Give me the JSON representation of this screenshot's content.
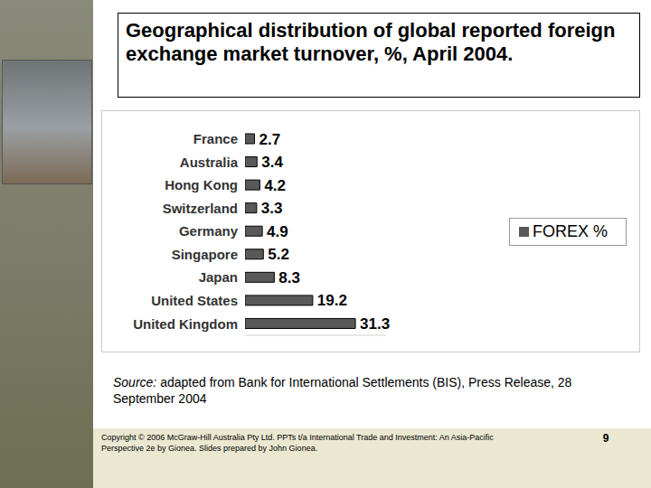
{
  "chart_data": {
    "type": "bar",
    "title": "Geographical distribution of global reported foreign exchange market turnover, %, April 2004.",
    "orientation": "horizontal",
    "categories": [
      "France",
      "Australia",
      "Hong Kong",
      "Switzerland",
      "Germany",
      "Singapore",
      "Japan",
      "United States",
      "United Kingdom"
    ],
    "series": [
      {
        "name": "FOREX %",
        "color": "#595959",
        "values": [
          2.7,
          3.4,
          4.2,
          3.3,
          4.9,
          5.2,
          8.3,
          19.2,
          31.3
        ]
      }
    ],
    "xlim": [
      0,
      40
    ],
    "data_labels": true,
    "tick_labels": "y",
    "legend": "right",
    "grid": false
  },
  "slide": {
    "source_label": "Source:",
    "source": "adapted from Bank for International Settlements (BIS), Press Release, 28 September 2004",
    "copyright": "Copyright © 2006 McGraw-Hill Australia Pty Ltd. PPTs t/a International Trade and Investment: An Asia-Pacific Perspective 2e by Gionea. Slides prepared by John Gionea.",
    "page": 9
  }
}
